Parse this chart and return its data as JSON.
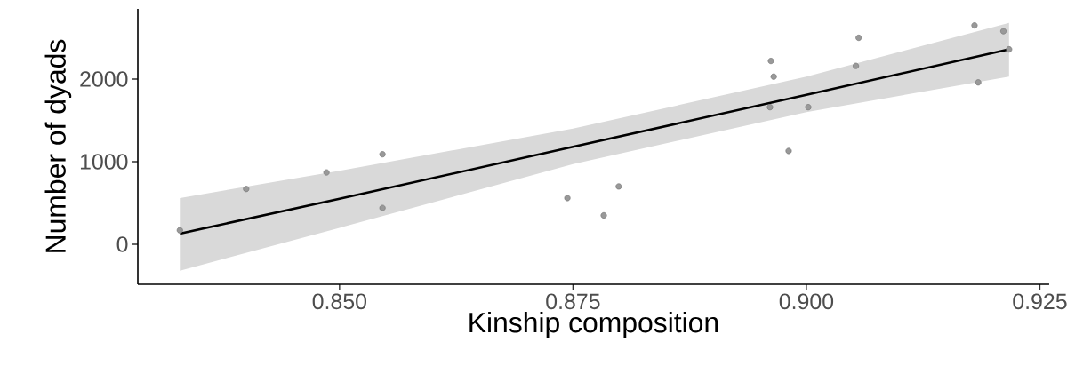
{
  "chart_data": {
    "type": "scatter",
    "xlabel": "Kinship composition",
    "ylabel": "Number of dyads",
    "xlim": [
      0.8284,
      0.926
    ],
    "ylim": [
      -484,
      2850
    ],
    "xticks": [
      {
        "value": 0.85,
        "label": "0.850"
      },
      {
        "value": 0.875,
        "label": "0.875"
      },
      {
        "value": 0.9,
        "label": "0.900"
      },
      {
        "value": 0.925,
        "label": "0.925"
      }
    ],
    "yticks": [
      0,
      1000,
      2000
    ],
    "grid": false,
    "series": [
      {
        "marker": "circle",
        "color": "#999999",
        "x": [
          0.8329,
          0.84,
          0.8486,
          0.8546,
          0.8546,
          0.8744,
          0.8799,
          0.8783,
          0.8981,
          0.8962,
          0.8965,
          0.8961,
          0.9002,
          0.9056,
          0.9053,
          0.918,
          0.9211,
          0.9217,
          0.9184
        ],
        "values": [
          170,
          670,
          870,
          1090,
          440,
          560,
          700,
          350,
          1130,
          2220,
          2030,
          1660,
          1660,
          2500,
          2160,
          2650,
          2580,
          2360,
          1960
        ]
      },
      {
        "type": "line",
        "marker": "none",
        "color": "#000000",
        "x": [
          0.8329,
          0.85,
          0.875,
          0.9,
          0.9217
        ],
        "values": [
          130,
          550,
          1180,
          1810,
          2360
        ],
        "lower": [
          -320,
          200,
          970,
          1600,
          2030
        ],
        "upper": [
          560,
          890,
          1400,
          2030,
          2680
        ]
      }
    ]
  }
}
